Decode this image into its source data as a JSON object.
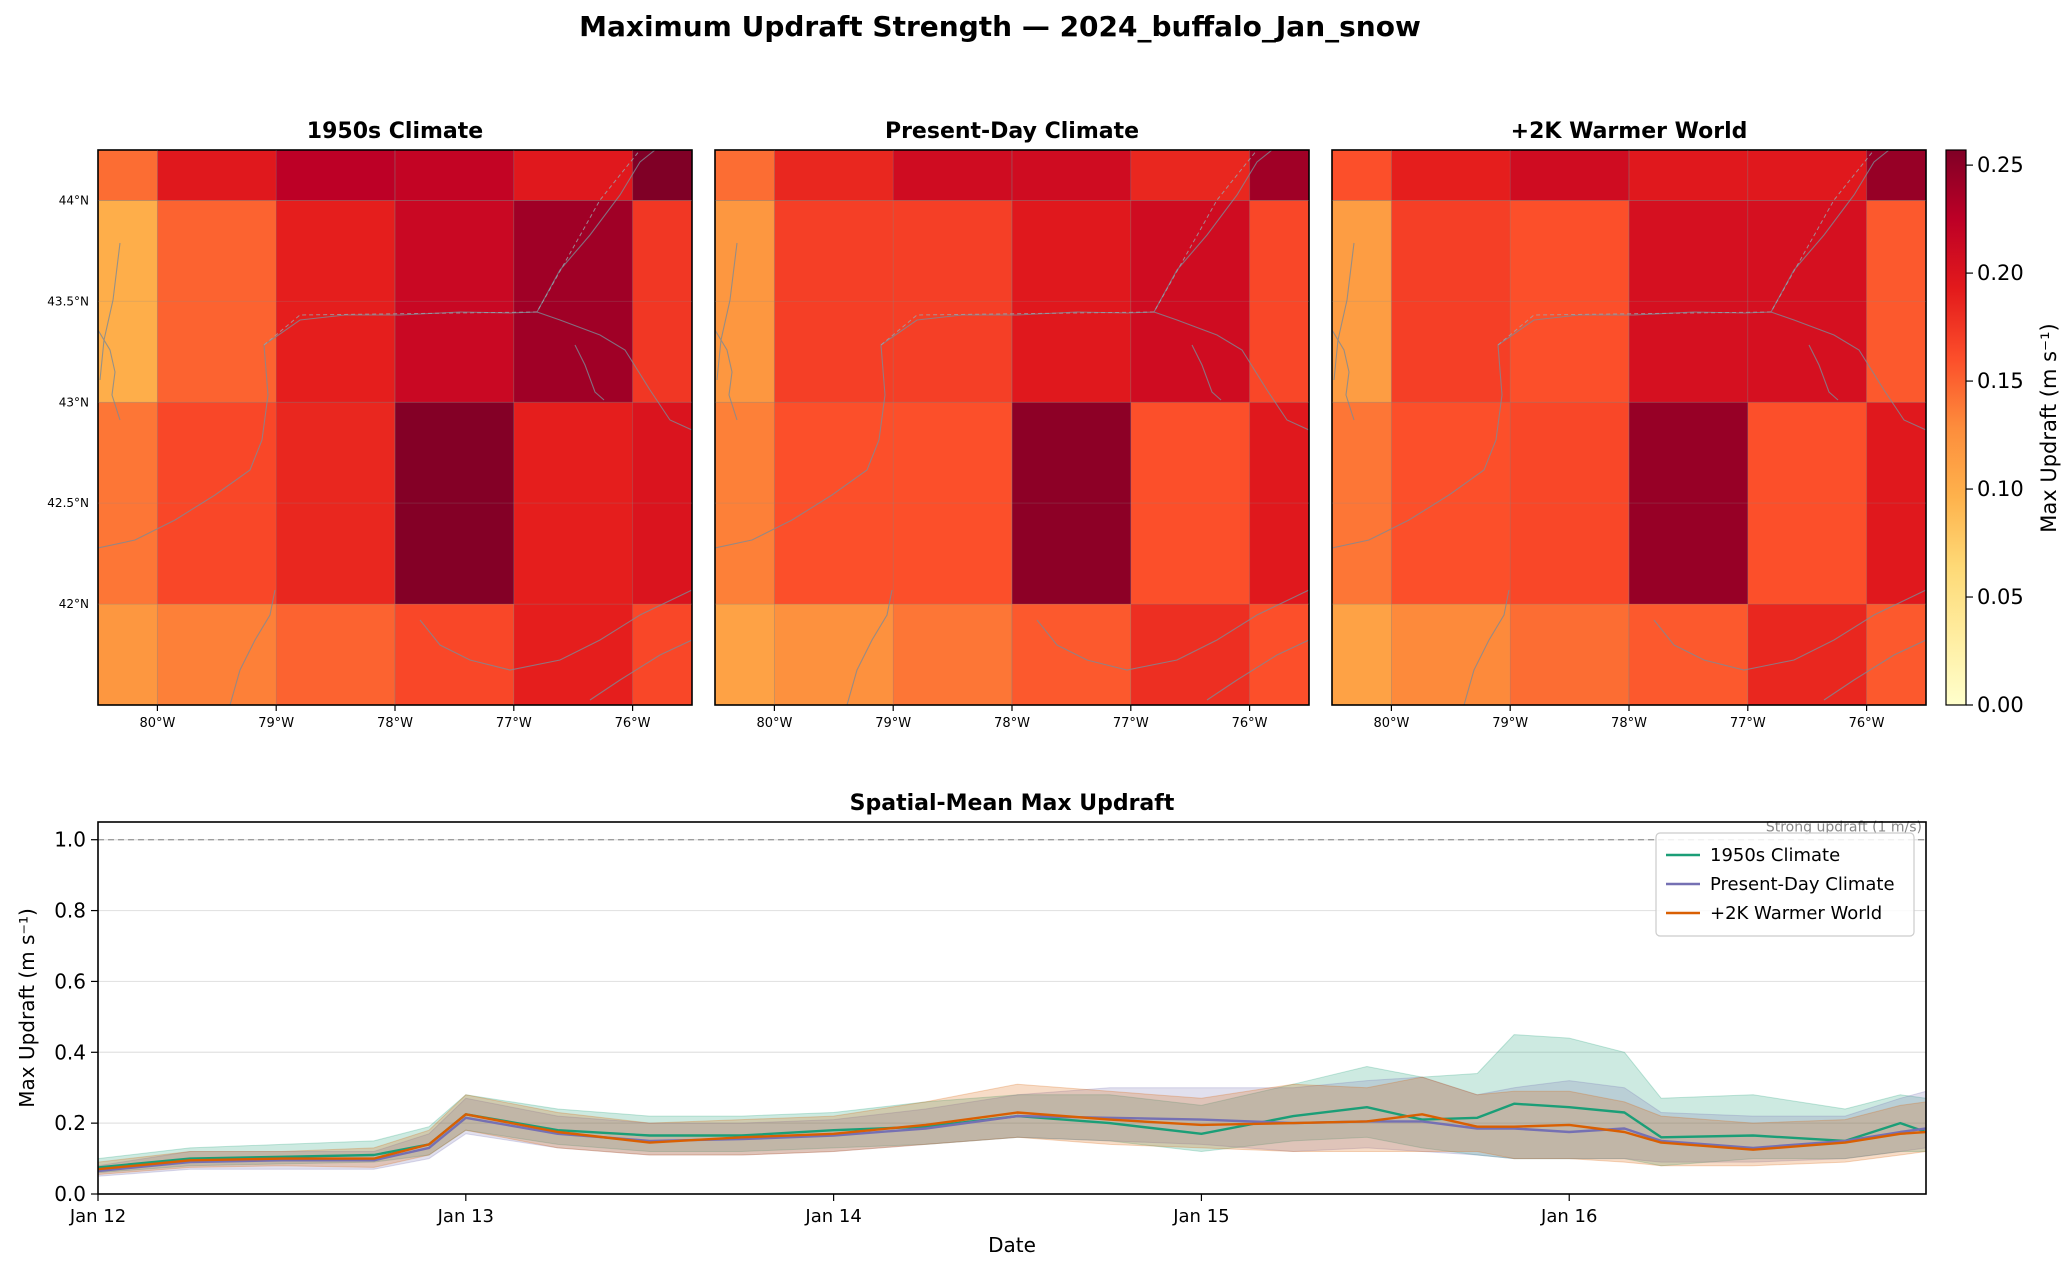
{
  "figure": {
    "title": "Maximum Updraft Strength — 2024_buffalo_Jan_snow"
  },
  "colorbar": {
    "label": "Max Updraft (m s⁻¹)",
    "min": 0.0,
    "max": 0.257,
    "ticks": [
      0.0,
      0.05,
      0.1,
      0.15,
      0.2,
      0.25
    ],
    "tick_labels": [
      "0.00",
      "0.05",
      "0.10",
      "0.15",
      "0.20",
      "0.25"
    ],
    "colormap": "YlOrRd"
  },
  "chart_data": [
    {
      "type": "heatmap",
      "title": "1950s Climate",
      "lon_edges": [
        -80.5,
        -80.0,
        -79.0,
        -78.0,
        -77.0,
        -76.0,
        -75.5
      ],
      "lat_edges": [
        41.5,
        42.0,
        43.0,
        44.0,
        44.25
      ],
      "xticks": [
        -80,
        -79,
        -78,
        -77,
        -76
      ],
      "xtick_labels": [
        "80°W",
        "79°W",
        "78°W",
        "77°W",
        "76°W"
      ],
      "yticks": [
        42,
        42.5,
        43,
        43.5,
        44
      ],
      "ytick_labels": [
        "42°N",
        "42.5°N",
        "43°N",
        "43.5°N",
        "44°N"
      ],
      "values_top_row_first": [
        [
          0.145,
          0.195,
          0.225,
          0.22,
          0.195,
          0.257
        ],
        [
          0.1,
          0.15,
          0.19,
          0.215,
          0.24,
          0.175
        ],
        [
          0.14,
          0.165,
          0.185,
          0.255,
          0.19,
          0.2
        ],
        [
          0.12,
          0.135,
          0.15,
          0.165,
          0.19,
          0.165
        ]
      ]
    },
    {
      "type": "heatmap",
      "title": "Present-Day Climate",
      "lon_edges": [
        -80.5,
        -80.0,
        -79.0,
        -78.0,
        -77.0,
        -76.0,
        -75.5
      ],
      "lat_edges": [
        41.5,
        42.0,
        43.0,
        44.0,
        44.25
      ],
      "xticks": [
        -80,
        -79,
        -78,
        -77,
        -76
      ],
      "xtick_labels": [
        "80°W",
        "79°W",
        "78°W",
        "77°W",
        "76°W"
      ],
      "values_top_row_first": [
        [
          0.145,
          0.185,
          0.21,
          0.21,
          0.185,
          0.24
        ],
        [
          0.12,
          0.17,
          0.17,
          0.195,
          0.21,
          0.165
        ],
        [
          0.135,
          0.16,
          0.16,
          0.25,
          0.16,
          0.195
        ],
        [
          0.11,
          0.125,
          0.14,
          0.155,
          0.18,
          0.16
        ]
      ]
    },
    {
      "type": "heatmap",
      "title": "+2K Warmer World",
      "lon_edges": [
        -80.5,
        -80.0,
        -79.0,
        -78.0,
        -77.0,
        -76.0,
        -75.5
      ],
      "lat_edges": [
        41.5,
        42.0,
        43.0,
        44.0,
        44.25
      ],
      "xticks": [
        -80,
        -79,
        -78,
        -77,
        -76
      ],
      "xtick_labels": [
        "80°W",
        "79°W",
        "78°W",
        "77°W",
        "76°W"
      ],
      "values_top_row_first": [
        [
          0.16,
          0.19,
          0.21,
          0.195,
          0.195,
          0.245
        ],
        [
          0.115,
          0.17,
          0.16,
          0.205,
          0.205,
          0.155
        ],
        [
          0.14,
          0.16,
          0.165,
          0.245,
          0.16,
          0.195
        ],
        [
          0.11,
          0.13,
          0.145,
          0.155,
          0.185,
          0.155
        ]
      ]
    },
    {
      "type": "line",
      "title": "Spatial-Mean Max Updraft",
      "xlabel": "Date",
      "ylabel": "Max Updraft (m s⁻¹)",
      "x_unit": "days since Jan 12 00:00",
      "xlim": [
        0,
        4.97
      ],
      "ylim": [
        0,
        1.05
      ],
      "xticks": [
        0,
        1,
        2,
        3,
        4
      ],
      "xtick_labels": [
        "Jan 12",
        "Jan 13",
        "Jan 14",
        "Jan 15",
        "Jan 16"
      ],
      "yticks": [
        0.0,
        0.2,
        0.4,
        0.6,
        0.8,
        1.0
      ],
      "ytick_labels": [
        "0.0",
        "0.2",
        "0.4",
        "0.6",
        "0.8",
        "1.0"
      ],
      "grid": "horizontal",
      "legend_position": "top-right",
      "reference_line": {
        "y": 1.0,
        "label": "Strong updraft (1 m/s)"
      },
      "series": [
        {
          "name": "1950s Climate",
          "color": "#1b9e77",
          "x": [
            0,
            0.25,
            0.5,
            0.75,
            0.9,
            1.0,
            1.25,
            1.5,
            1.75,
            2.0,
            2.25,
            2.5,
            2.75,
            3.0,
            3.25,
            3.45,
            3.6,
            3.75,
            3.85,
            4.0,
            4.15,
            4.25,
            4.5,
            4.75,
            4.9,
            4.97
          ],
          "mean": [
            0.075,
            0.1,
            0.105,
            0.11,
            0.14,
            0.225,
            0.18,
            0.165,
            0.165,
            0.18,
            0.19,
            0.22,
            0.2,
            0.17,
            0.22,
            0.245,
            0.21,
            0.215,
            0.255,
            0.245,
            0.23,
            0.16,
            0.165,
            0.15,
            0.2,
            0.175
          ],
          "lower": [
            0.06,
            0.08,
            0.085,
            0.09,
            0.11,
            0.18,
            0.14,
            0.12,
            0.12,
            0.13,
            0.14,
            0.16,
            0.15,
            0.12,
            0.15,
            0.16,
            0.13,
            0.11,
            0.1,
            0.1,
            0.1,
            0.08,
            0.1,
            0.1,
            0.12,
            0.12
          ],
          "upper": [
            0.1,
            0.13,
            0.14,
            0.15,
            0.19,
            0.28,
            0.24,
            0.22,
            0.22,
            0.23,
            0.26,
            0.28,
            0.28,
            0.25,
            0.31,
            0.36,
            0.33,
            0.34,
            0.45,
            0.44,
            0.4,
            0.27,
            0.28,
            0.24,
            0.28,
            0.27
          ]
        },
        {
          "name": "Present-Day Climate",
          "color": "#7570b3",
          "x": [
            0,
            0.25,
            0.5,
            0.75,
            0.9,
            1.0,
            1.25,
            1.5,
            1.75,
            2.0,
            2.25,
            2.5,
            2.75,
            3.0,
            3.25,
            3.45,
            3.6,
            3.75,
            3.85,
            4.0,
            4.15,
            4.25,
            4.5,
            4.75,
            4.9,
            4.97
          ],
          "mean": [
            0.065,
            0.09,
            0.095,
            0.095,
            0.13,
            0.215,
            0.17,
            0.15,
            0.155,
            0.165,
            0.185,
            0.22,
            0.215,
            0.21,
            0.2,
            0.205,
            0.205,
            0.185,
            0.185,
            0.175,
            0.185,
            0.15,
            0.13,
            0.15,
            0.175,
            0.185
          ],
          "lower": [
            0.05,
            0.07,
            0.07,
            0.07,
            0.1,
            0.17,
            0.13,
            0.11,
            0.11,
            0.12,
            0.14,
            0.16,
            0.15,
            0.14,
            0.12,
            0.13,
            0.12,
            0.11,
            0.1,
            0.1,
            0.1,
            0.09,
            0.09,
            0.1,
            0.12,
            0.13
          ],
          "upper": [
            0.08,
            0.12,
            0.12,
            0.12,
            0.17,
            0.27,
            0.22,
            0.2,
            0.2,
            0.21,
            0.24,
            0.28,
            0.3,
            0.3,
            0.3,
            0.32,
            0.33,
            0.28,
            0.3,
            0.32,
            0.3,
            0.23,
            0.22,
            0.22,
            0.27,
            0.29
          ]
        },
        {
          "name": "+2K Warmer World",
          "color": "#d95f02",
          "x": [
            0,
            0.25,
            0.5,
            0.75,
            0.9,
            1.0,
            1.25,
            1.5,
            1.75,
            2.0,
            2.25,
            2.5,
            2.75,
            3.0,
            3.25,
            3.45,
            3.6,
            3.75,
            3.85,
            4.0,
            4.15,
            4.25,
            4.5,
            4.75,
            4.9,
            4.97
          ],
          "mean": [
            0.07,
            0.095,
            0.1,
            0.1,
            0.14,
            0.225,
            0.175,
            0.145,
            0.16,
            0.17,
            0.195,
            0.23,
            0.21,
            0.195,
            0.2,
            0.205,
            0.225,
            0.19,
            0.19,
            0.195,
            0.175,
            0.145,
            0.125,
            0.145,
            0.17,
            0.175
          ],
          "lower": [
            0.055,
            0.075,
            0.08,
            0.075,
            0.11,
            0.18,
            0.13,
            0.11,
            0.11,
            0.12,
            0.14,
            0.16,
            0.14,
            0.13,
            0.12,
            0.12,
            0.12,
            0.12,
            0.1,
            0.1,
            0.09,
            0.08,
            0.08,
            0.09,
            0.11,
            0.12
          ],
          "upper": [
            0.09,
            0.12,
            0.12,
            0.13,
            0.18,
            0.28,
            0.23,
            0.2,
            0.21,
            0.22,
            0.26,
            0.31,
            0.29,
            0.27,
            0.31,
            0.3,
            0.33,
            0.28,
            0.29,
            0.29,
            0.26,
            0.22,
            0.2,
            0.21,
            0.25,
            0.26
          ]
        }
      ]
    }
  ]
}
